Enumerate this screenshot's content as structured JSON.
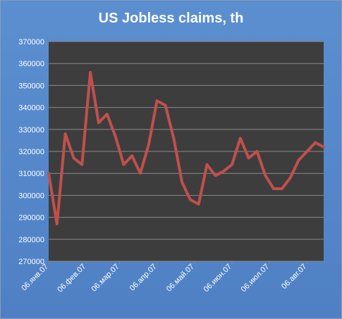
{
  "chart_data": {
    "type": "line",
    "title": "US Jobless claims, th",
    "xlabel": "",
    "ylabel": "",
    "ylim": [
      270000,
      370000
    ],
    "y_ticks": [
      270000,
      280000,
      290000,
      300000,
      310000,
      320000,
      330000,
      340000,
      350000,
      360000,
      370000
    ],
    "y_tick_labels": [
      "270000",
      "280000",
      "290000",
      "300000",
      "310000",
      "320000",
      "330000",
      "340000",
      "350000",
      "360000",
      "370000"
    ],
    "x_tick_labels": [
      "06.янв.07",
      "06.фев.07",
      "06.мар.07",
      "06.апр.07",
      "06.май.07",
      "06.июн.07",
      "06.июл.07",
      "06.авг.07"
    ],
    "x_tick_index": [
      0,
      4.5,
      8.5,
      13,
      17.5,
      22,
      26.5,
      31
    ],
    "grid": true,
    "legend": "none",
    "series": [
      {
        "color": "#c0504d",
        "values": [
          310000,
          287000,
          328000,
          317000,
          314000,
          356000,
          333000,
          337000,
          327000,
          314000,
          318000,
          310000,
          323000,
          343000,
          341000,
          326000,
          306000,
          298000,
          296000,
          314000,
          309000,
          311000,
          314000,
          326000,
          317000,
          320000,
          309000,
          303000,
          303000,
          308000,
          316000,
          320000,
          324000,
          322000
        ]
      }
    ],
    "colors": {
      "plot_background": "#3d3d3d",
      "outer_background": "#4f81bd",
      "gridline": "#8a8a8a",
      "text": "#ffffff"
    }
  }
}
